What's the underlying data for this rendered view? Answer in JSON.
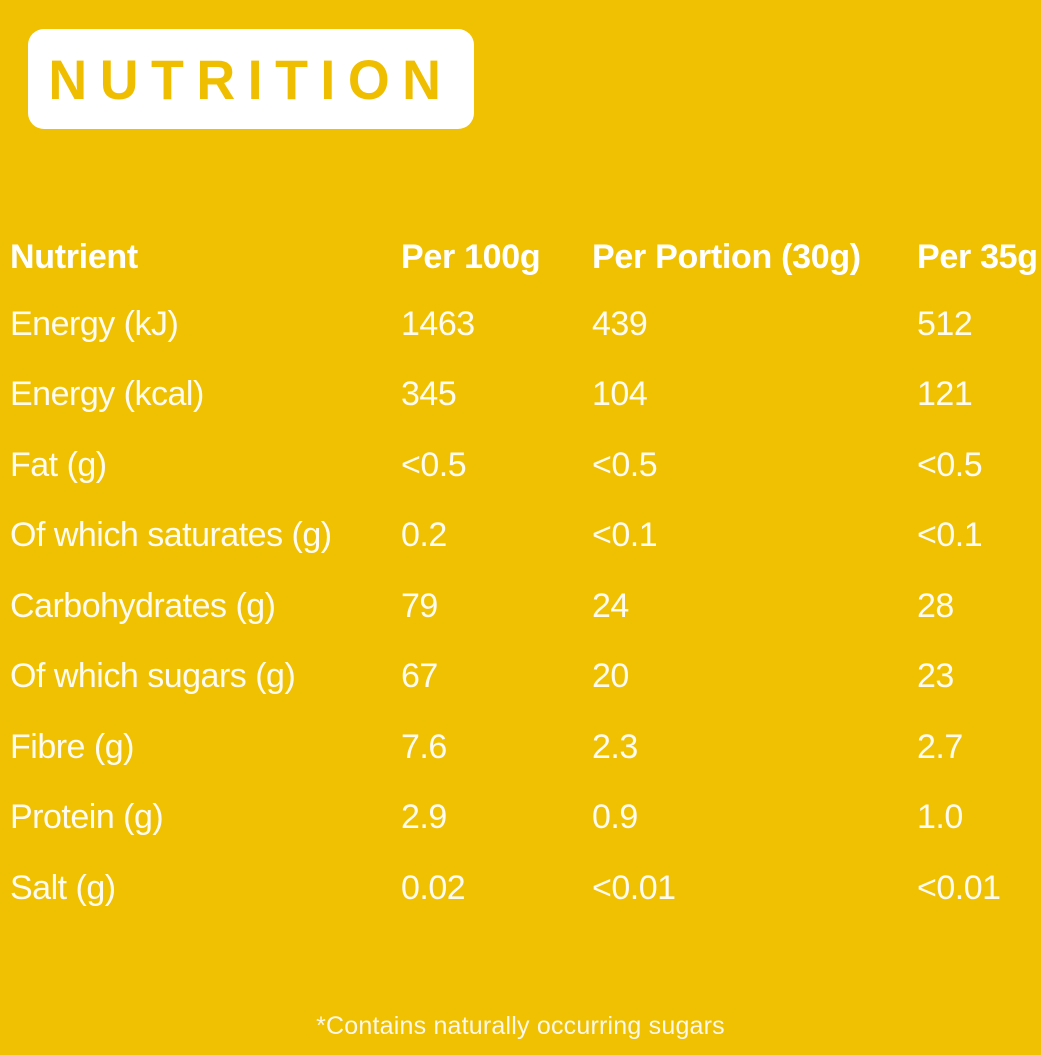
{
  "colors": {
    "background": "#F0C002",
    "badge_background": "#FFFFFF",
    "badge_text": "#F0BE00",
    "table_header_text": "#FFFFFF",
    "table_body_text": "#FEFBF1"
  },
  "header": {
    "title": "NUTRITION"
  },
  "table": {
    "headers": [
      "Nutrient",
      "Per 100g",
      "Per Portion (30g)",
      "Per 35g"
    ],
    "rows": [
      {
        "nutrient": "Energy (kJ)",
        "per_100g": "1463",
        "per_portion_30g": "439",
        "per_35g": "512"
      },
      {
        "nutrient": "Energy (kcal)",
        "per_100g": "345",
        "per_portion_30g": "104",
        "per_35g": "121"
      },
      {
        "nutrient": "Fat (g)",
        "per_100g": "<0.5",
        "per_portion_30g": "<0.5",
        "per_35g": "<0.5"
      },
      {
        "nutrient": "Of which saturates (g)",
        "per_100g": "0.2",
        "per_portion_30g": "<0.1",
        "per_35g": "<0.1"
      },
      {
        "nutrient": "Carbohydrates (g)",
        "per_100g": "79",
        "per_portion_30g": "24",
        "per_35g": "28"
      },
      {
        "nutrient": "Of which sugars (g)",
        "per_100g": "67",
        "per_portion_30g": "20",
        "per_35g": "23"
      },
      {
        "nutrient": "Fibre (g)",
        "per_100g": "7.6",
        "per_portion_30g": "2.3",
        "per_35g": "2.7"
      },
      {
        "nutrient": "Protein (g)",
        "per_100g": "2.9",
        "per_portion_30g": "0.9",
        "per_35g": "1.0"
      },
      {
        "nutrient": "Salt (g)",
        "per_100g": "0.02",
        "per_portion_30g": "<0.01",
        "per_35g": "<0.01"
      }
    ]
  },
  "footnote": "*Contains naturally occurring sugars"
}
